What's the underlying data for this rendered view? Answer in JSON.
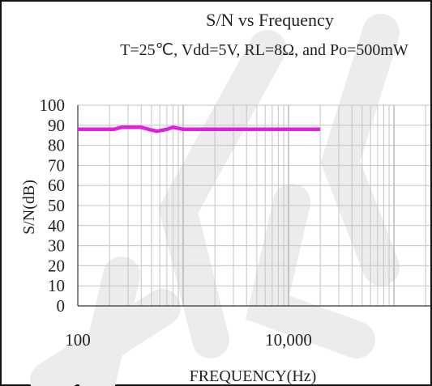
{
  "chart_data": {
    "type": "line",
    "title": "S/N vs Frequency",
    "subtitle": "T=25℃, Vdd=5V, RL=8Ω, and Po=500mW",
    "xlabel": "FREQUENCY(Hz)",
    "ylabel": "S/N(dB)",
    "xscale": "log",
    "xlim": [
      100,
      30000
    ],
    "ylim": [
      0,
      100
    ],
    "x_ticks": [
      {
        "value": 100,
        "label": "100"
      },
      {
        "value": 10000,
        "label": "10,000"
      }
    ],
    "y_ticks": [
      0,
      10,
      20,
      30,
      40,
      50,
      60,
      70,
      80,
      90,
      100
    ],
    "grid": true,
    "series": [
      {
        "color": "#e020e0",
        "x": [
          100,
          220,
          260,
          400,
          470,
          560,
          700,
          800,
          1000,
          2000,
          5000,
          10000,
          20000
        ],
        "y": [
          88,
          88,
          89,
          89,
          88,
          87,
          88,
          89,
          88,
          88,
          88,
          88,
          88
        ]
      }
    ]
  }
}
